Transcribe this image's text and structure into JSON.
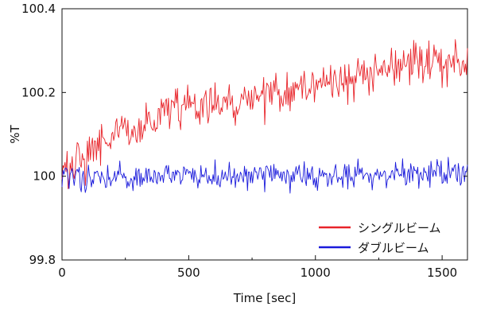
{
  "chart_data": {
    "type": "line",
    "xlabel": "Time [sec]",
    "ylabel": "%T",
    "xlim": [
      0,
      1600
    ],
    "ylim": [
      99.8,
      100.4
    ],
    "x_ticks": [
      0,
      500,
      1000,
      1500
    ],
    "x_tick_labels": [
      "0",
      "500",
      "1000",
      "1500"
    ],
    "x_minor_step": 250,
    "y_ticks": [
      99.8,
      100,
      100.2,
      100.4
    ],
    "y_tick_labels": [
      "99.8",
      "100",
      "100.2",
      "100.4"
    ],
    "grid": false,
    "legend_position": "bottom-right",
    "series": [
      {
        "name": "シングルビーム",
        "color": "#e8242a",
        "x": [
          0,
          100,
          200,
          300,
          400,
          500,
          600,
          700,
          800,
          900,
          1000,
          1100,
          1200,
          1300,
          1400,
          1500,
          1600
        ],
        "values": [
          100.0,
          100.05,
          100.1,
          100.11,
          100.15,
          100.17,
          100.18,
          100.18,
          100.19,
          100.2,
          100.22,
          100.23,
          100.24,
          100.26,
          100.27,
          100.27,
          100.28
        ],
        "noise": 0.025
      },
      {
        "name": "ダブルビーム",
        "color": "#1a1adb",
        "x": [
          0,
          100,
          200,
          300,
          400,
          500,
          600,
          700,
          800,
          900,
          1000,
          1100,
          1200,
          1300,
          1400,
          1500,
          1600
        ],
        "values": [
          100.0,
          100.0,
          100.0,
          100.0,
          100.0,
          100.0,
          100.0,
          100.0,
          100.0,
          100.0,
          100.0,
          100.0,
          100.0,
          100.0,
          100.0,
          100.01,
          100.01
        ],
        "noise": 0.016
      }
    ]
  }
}
